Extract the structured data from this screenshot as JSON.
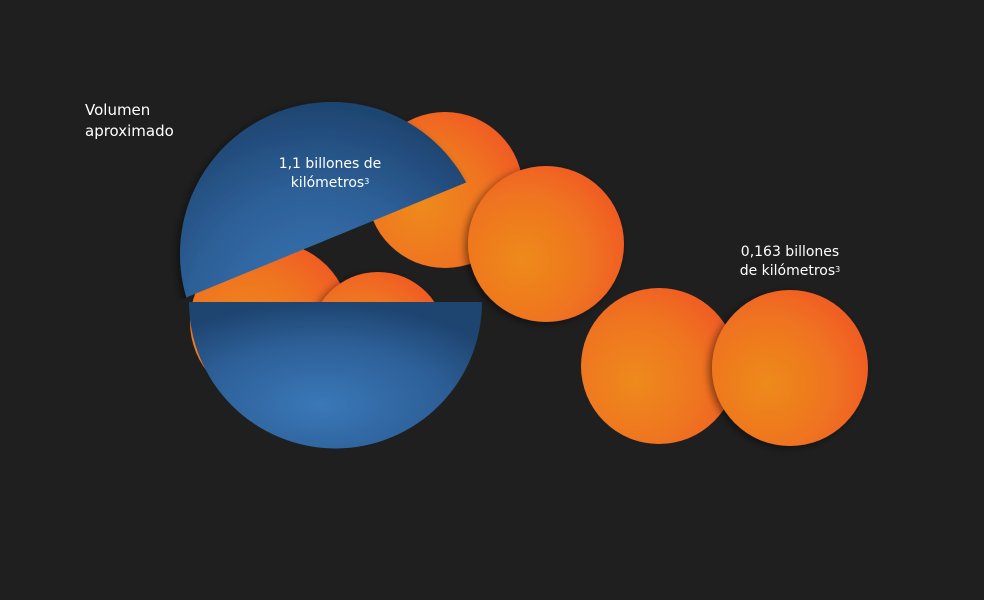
{
  "title": "Volumen aproximado",
  "big_volume": {
    "line1": "1,1 billones de",
    "line2": "kilómetros",
    "exp": "3",
    "color": "#2f6aa8"
  },
  "small_volume": {
    "line1": "0,163 billones",
    "line2": "de kilómetros",
    "exp": "3",
    "color": "#f05a24"
  },
  "background": "#1f1f1f"
}
